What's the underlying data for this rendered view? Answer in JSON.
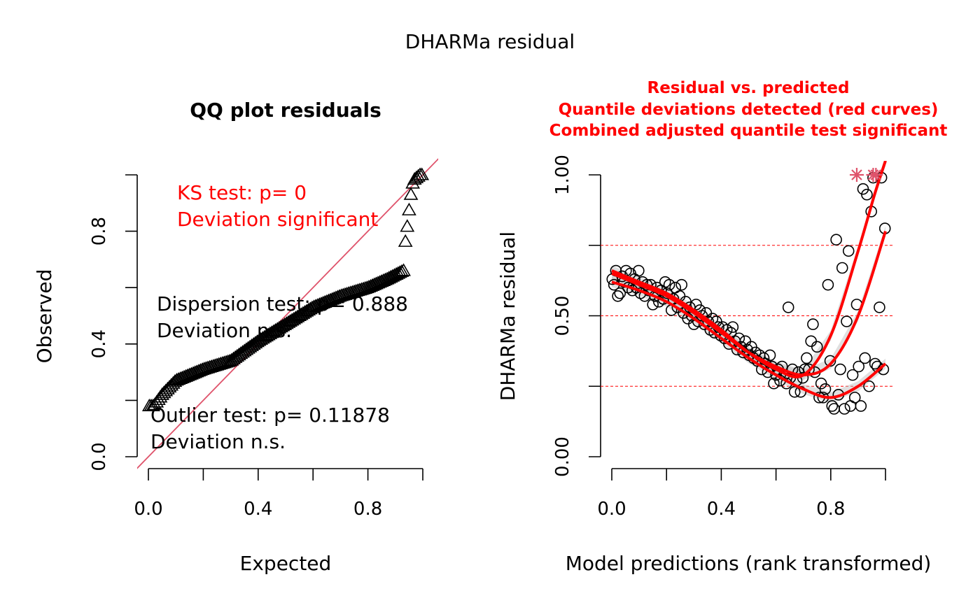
{
  "figure": {
    "main_title": "DHARMa residual"
  },
  "chart_data": [
    {
      "type": "scatter",
      "title": "QQ plot residuals",
      "xlabel": "Expected",
      "ylabel": "Observed",
      "xlim": [
        0,
        1
      ],
      "ylim": [
        0,
        1
      ],
      "x_ticks": [
        {
          "value": 0,
          "label": "0.0"
        },
        {
          "value": 0.2,
          "label": ""
        },
        {
          "value": 0.4,
          "label": "0.4"
        },
        {
          "value": 0.6,
          "label": ""
        },
        {
          "value": 0.8,
          "label": "0.8"
        },
        {
          "value": 1.0,
          "label": ""
        }
      ],
      "y_ticks": [
        {
          "value": 0,
          "label": "0.0"
        },
        {
          "value": 0.2,
          "label": ""
        },
        {
          "value": 0.4,
          "label": "0.4"
        },
        {
          "value": 0.6,
          "label": ""
        },
        {
          "value": 0.8,
          "label": "0.8"
        },
        {
          "value": 1.0,
          "label": ""
        }
      ],
      "marker": "triangle",
      "reference_line": {
        "intercept": 0,
        "slope": 1,
        "color": "#df536b"
      },
      "qq_profile": [
        [
          0,
          0.18
        ],
        [
          0.02,
          0.18
        ],
        [
          0.05,
          0.22
        ],
        [
          0.1,
          0.27
        ],
        [
          0.2,
          0.31
        ],
        [
          0.3,
          0.34
        ],
        [
          0.4,
          0.41
        ],
        [
          0.5,
          0.47
        ],
        [
          0.6,
          0.53
        ],
        [
          0.7,
          0.57
        ],
        [
          0.8,
          0.6
        ],
        [
          0.87,
          0.63
        ],
        [
          0.93,
          0.66
        ],
        [
          0.935,
          0.75
        ],
        [
          0.945,
          0.83
        ],
        [
          0.955,
          0.92
        ],
        [
          0.965,
          0.98
        ],
        [
          0.99,
          1.0
        ]
      ],
      "annotations": {
        "ks_test": "KS test: p= 0",
        "ks_deviation": "Deviation  significant",
        "dispersion_test": "Dispersion test: p= 0.888",
        "dispersion_deviation": "Deviation  n.s.",
        "outlier_test": "Outlier test: p= 0.11878",
        "outlier_deviation": "Deviation  n.s."
      },
      "colors": {
        "significant": "#ff0000",
        "normal": "#000000"
      }
    },
    {
      "type": "scatter",
      "title_lines": [
        "Residual vs. predicted",
        "Quantile deviations detected (red curves)",
        "Combined adjusted quantile test significant"
      ],
      "xlabel": "Model predictions (rank transformed)",
      "ylabel": "DHARMa residual",
      "xlim": [
        0,
        1
      ],
      "ylim": [
        0,
        1
      ],
      "x_ticks": [
        {
          "value": 0,
          "label": "0.0"
        },
        {
          "value": 0.2,
          "label": ""
        },
        {
          "value": 0.4,
          "label": "0.4"
        },
        {
          "value": 0.6,
          "label": ""
        },
        {
          "value": 0.8,
          "label": "0.8"
        },
        {
          "value": 1.0,
          "label": ""
        }
      ],
      "y_ticks": [
        {
          "value": 0,
          "label": "0.00"
        },
        {
          "value": 0.25,
          "label": ""
        },
        {
          "value": 0.5,
          "label": "0.50"
        },
        {
          "value": 0.75,
          "label": ""
        },
        {
          "value": 1.0,
          "label": "1.00"
        }
      ],
      "marker": "circle",
      "reference_quantiles": [
        0.25,
        0.5,
        0.75
      ],
      "points": [
        [
          0.002,
          0.63
        ],
        [
          0.008,
          0.61
        ],
        [
          0.015,
          0.66
        ],
        [
          0.022,
          0.57
        ],
        [
          0.03,
          0.58
        ],
        [
          0.038,
          0.64
        ],
        [
          0.045,
          0.62
        ],
        [
          0.052,
          0.66
        ],
        [
          0.06,
          0.6
        ],
        [
          0.068,
          0.65
        ],
        [
          0.075,
          0.59
        ],
        [
          0.083,
          0.63
        ],
        [
          0.09,
          0.6
        ],
        [
          0.098,
          0.66
        ],
        [
          0.105,
          0.58
        ],
        [
          0.112,
          0.62
        ],
        [
          0.12,
          0.57
        ],
        [
          0.128,
          0.61
        ],
        [
          0.135,
          0.59
        ],
        [
          0.142,
          0.61
        ],
        [
          0.15,
          0.54
        ],
        [
          0.158,
          0.57
        ],
        [
          0.165,
          0.6
        ],
        [
          0.172,
          0.55
        ],
        [
          0.18,
          0.59
        ],
        [
          0.188,
          0.56
        ],
        [
          0.195,
          0.62
        ],
        [
          0.202,
          0.58
        ],
        [
          0.21,
          0.61
        ],
        [
          0.218,
          0.52
        ],
        [
          0.225,
          0.56
        ],
        [
          0.232,
          0.6
        ],
        [
          0.24,
          0.53
        ],
        [
          0.248,
          0.57
        ],
        [
          0.255,
          0.61
        ],
        [
          0.262,
          0.51
        ],
        [
          0.27,
          0.55
        ],
        [
          0.278,
          0.49
        ],
        [
          0.285,
          0.53
        ],
        [
          0.292,
          0.5
        ],
        [
          0.3,
          0.47
        ],
        [
          0.308,
          0.54
        ],
        [
          0.315,
          0.48
        ],
        [
          0.322,
          0.52
        ],
        [
          0.33,
          0.5
        ],
        [
          0.338,
          0.47
        ],
        [
          0.345,
          0.51
        ],
        [
          0.352,
          0.48
        ],
        [
          0.36,
          0.45
        ],
        [
          0.368,
          0.49
        ],
        [
          0.375,
          0.44
        ],
        [
          0.382,
          0.48
        ],
        [
          0.39,
          0.46
        ],
        [
          0.398,
          0.43
        ],
        [
          0.405,
          0.46
        ],
        [
          0.412,
          0.42
        ],
        [
          0.42,
          0.45
        ],
        [
          0.428,
          0.4
        ],
        [
          0.435,
          0.44
        ],
        [
          0.442,
          0.46
        ],
        [
          0.45,
          0.41
        ],
        [
          0.458,
          0.38
        ],
        [
          0.465,
          0.42
        ],
        [
          0.472,
          0.39
        ],
        [
          0.48,
          0.37
        ],
        [
          0.488,
          0.41
        ],
        [
          0.495,
          0.38
        ],
        [
          0.502,
          0.36
        ],
        [
          0.51,
          0.39
        ],
        [
          0.518,
          0.35
        ],
        [
          0.525,
          0.37
        ],
        [
          0.532,
          0.34
        ],
        [
          0.54,
          0.36
        ],
        [
          0.548,
          0.31
        ],
        [
          0.555,
          0.35
        ],
        [
          0.562,
          0.33
        ],
        [
          0.57,
          0.3
        ],
        [
          0.578,
          0.36
        ],
        [
          0.585,
          0.32
        ],
        [
          0.592,
          0.26
        ],
        [
          0.6,
          0.29
        ],
        [
          0.608,
          0.31
        ],
        [
          0.615,
          0.27
        ],
        [
          0.622,
          0.32
        ],
        [
          0.63,
          0.29
        ],
        [
          0.638,
          0.26
        ],
        [
          0.645,
          0.53
        ],
        [
          0.652,
          0.28
        ],
        [
          0.66,
          0.31
        ],
        [
          0.668,
          0.23
        ],
        [
          0.675,
          0.27
        ],
        [
          0.682,
          0.3
        ],
        [
          0.69,
          0.23
        ],
        [
          0.698,
          0.28
        ],
        [
          0.705,
          0.31
        ],
        [
          0.712,
          0.35
        ],
        [
          0.72,
          0.31
        ],
        [
          0.728,
          0.41
        ],
        [
          0.735,
          0.47
        ],
        [
          0.742,
          0.3
        ],
        [
          0.75,
          0.39
        ],
        [
          0.758,
          0.21
        ],
        [
          0.765,
          0.26
        ],
        [
          0.772,
          0.21
        ],
        [
          0.78,
          0.24
        ],
        [
          0.79,
          0.61
        ],
        [
          0.798,
          0.34
        ],
        [
          0.805,
          0.18
        ],
        [
          0.812,
          0.17
        ],
        [
          0.82,
          0.77
        ],
        [
          0.828,
          0.22
        ],
        [
          0.835,
          0.31
        ],
        [
          0.842,
          0.67
        ],
        [
          0.85,
          0.17
        ],
        [
          0.858,
          0.48
        ],
        [
          0.865,
          0.73
        ],
        [
          0.872,
          0.18
        ],
        [
          0.88,
          0.29
        ],
        [
          0.888,
          0.21
        ],
        [
          0.895,
          0.54
        ],
        [
          0.902,
          0.32
        ],
        [
          0.91,
          0.18
        ],
        [
          0.918,
          0.95
        ],
        [
          0.925,
          0.35
        ],
        [
          0.932,
          0.93
        ],
        [
          0.94,
          0.25
        ],
        [
          0.948,
          0.87
        ],
        [
          0.955,
          0.99
        ],
        [
          0.962,
          0.33
        ],
        [
          0.97,
          0.32
        ],
        [
          0.978,
          0.53
        ],
        [
          0.985,
          0.99
        ],
        [
          0.992,
          0.31
        ],
        [
          0.998,
          0.81
        ]
      ],
      "outlier_stars": [
        [
          0.895,
          1.0
        ],
        [
          0.955,
          1.0
        ],
        [
          0.965,
          1.0
        ]
      ],
      "quantile_curves": [
        {
          "quantile": 0.25,
          "points": [
            [
              0,
              0.62
            ],
            [
              0.1,
              0.59
            ],
            [
              0.2,
              0.55
            ],
            [
              0.3,
              0.49
            ],
            [
              0.4,
              0.42
            ],
            [
              0.5,
              0.35
            ],
            [
              0.6,
              0.29
            ],
            [
              0.7,
              0.24
            ],
            [
              0.8,
              0.21
            ],
            [
              0.9,
              0.25
            ],
            [
              1.0,
              0.33
            ]
          ]
        },
        {
          "quantile": 0.5,
          "points": [
            [
              0,
              0.65
            ],
            [
              0.1,
              0.61
            ],
            [
              0.2,
              0.57
            ],
            [
              0.3,
              0.51
            ],
            [
              0.4,
              0.44
            ],
            [
              0.5,
              0.37
            ],
            [
              0.6,
              0.32
            ],
            [
              0.7,
              0.29
            ],
            [
              0.8,
              0.33
            ],
            [
              0.9,
              0.5
            ],
            [
              1.0,
              0.8
            ]
          ]
        },
        {
          "quantile": 0.75,
          "points": [
            [
              0,
              0.66
            ],
            [
              0.1,
              0.62
            ],
            [
              0.2,
              0.58
            ],
            [
              0.3,
              0.52
            ],
            [
              0.4,
              0.45
            ],
            [
              0.5,
              0.37
            ],
            [
              0.6,
              0.31
            ],
            [
              0.7,
              0.29
            ],
            [
              0.8,
              0.43
            ],
            [
              0.9,
              0.73
            ],
            [
              0.96,
              0.93
            ],
            [
              1.0,
              1.05
            ]
          ]
        }
      ],
      "colors": {
        "curves": "#ff0000",
        "reference": "#ff0000",
        "star": "#df536b",
        "band": "#bbbbbb"
      }
    }
  ]
}
